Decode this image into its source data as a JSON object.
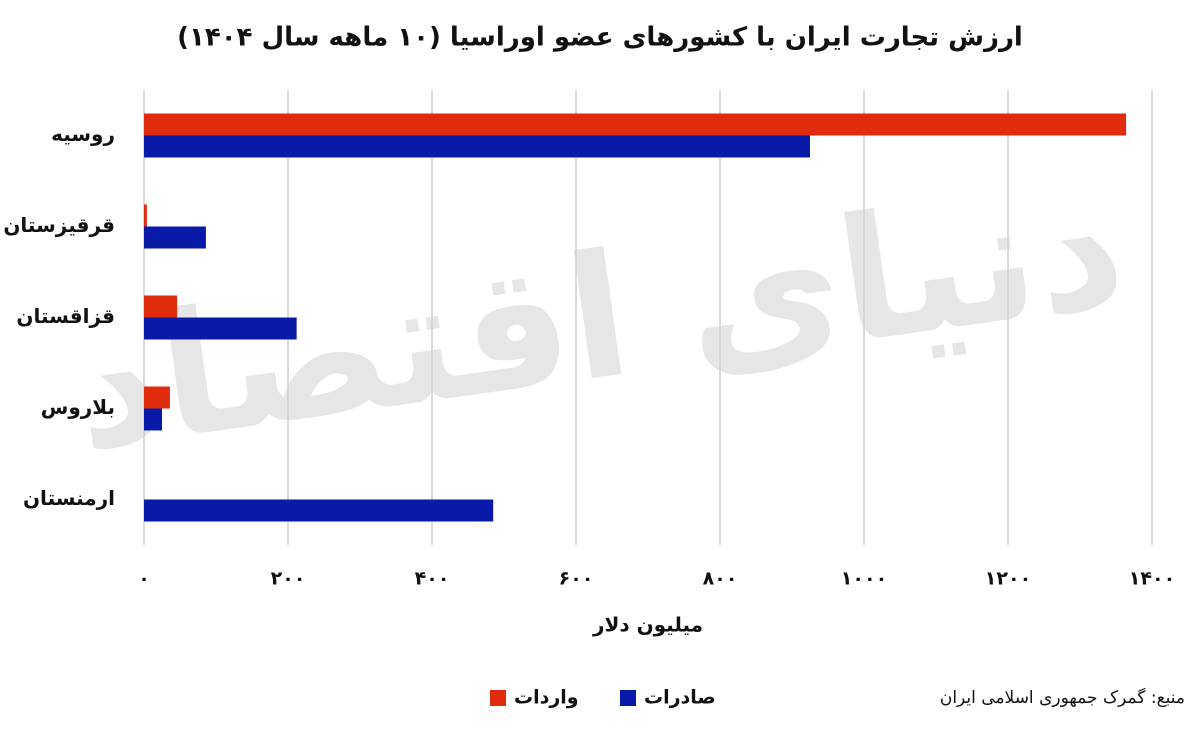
{
  "chart_data": {
    "type": "hbar",
    "title": "ارزش تجارت ایران با کشورهای عضو اوراسیا (۱۰ ماهه سال ۱۴۰۴)",
    "watermark": "دنیای اقتصاد",
    "x_label": "میلیون دلار",
    "source": "منبع: گمرک جمهوری اسلامی ایران",
    "categories": [
      "روسیه",
      "قرقیزستان",
      "قزاقستان",
      "بلاروس",
      "ارمنستان"
    ],
    "series": [
      {
        "name": "واردات",
        "color": "#e02b0c",
        "values": [
          1364,
          4,
          46,
          36,
          0
        ]
      },
      {
        "name": "صادرات",
        "color": "#0a1aa8",
        "values": [
          925,
          86,
          212,
          25,
          485
        ]
      }
    ],
    "xlim": [
      0,
      1400
    ],
    "xticks": [
      {
        "value": 0,
        "label": "۰"
      },
      {
        "value": 200,
        "label": "۲۰۰"
      },
      {
        "value": 400,
        "label": "۴۰۰"
      },
      {
        "value": 600,
        "label": "۶۰۰"
      },
      {
        "value": 800,
        "label": "۸۰۰"
      },
      {
        "value": 1000,
        "label": "۱۰۰۰"
      },
      {
        "value": 1200,
        "label": "۱۲۰۰"
      },
      {
        "value": 1400,
        "label": "۱۴۰۰"
      }
    ],
    "grid": true
  }
}
